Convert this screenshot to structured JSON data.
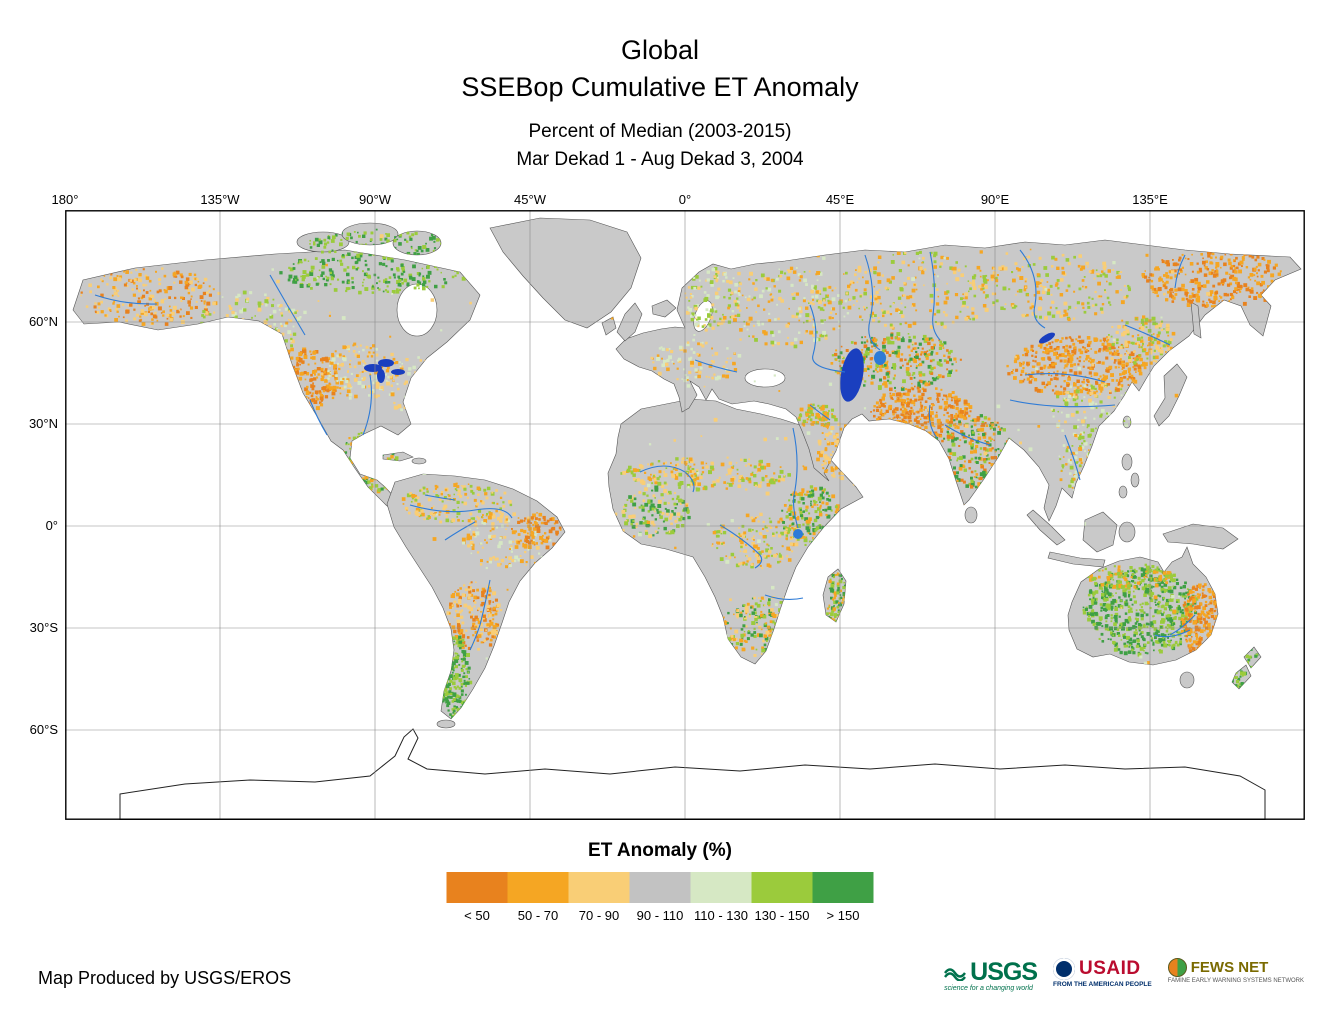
{
  "title": {
    "line1": "Global",
    "line2": "SSEBop Cumulative ET Anomaly"
  },
  "subtitle": {
    "line1": "Percent of Median (2003-2015)",
    "line2": "Mar Dekad 1 - Aug Dekad 3, 2004"
  },
  "map": {
    "lon_labels": [
      "180°",
      "135°W",
      "90°W",
      "45°W",
      "0°",
      "45°E",
      "90°E",
      "135°E"
    ],
    "lat_labels": [
      "60°N",
      "30°N",
      "0°",
      "30°S",
      "60°S"
    ],
    "ocean_color": "#FFFFFF",
    "land_color": "#C9C9C9",
    "water_color": "#2E7BD6",
    "deep_water_color": "#1A3FBF"
  },
  "legend": {
    "title": "ET Anomaly (%)",
    "items": [
      {
        "label": "< 50",
        "color": "#E8821E"
      },
      {
        "label": "50 - 70",
        "color": "#F5A623"
      },
      {
        "label": "70 - 90",
        "color": "#F9CE76"
      },
      {
        "label": "90 - 110",
        "color": "#C2C2C2"
      },
      {
        "label": "110 - 130",
        "color": "#D6E8C4"
      },
      {
        "label": "130 - 150",
        "color": "#9BCB3C"
      },
      {
        "label": "> 150",
        "color": "#3FA045"
      }
    ]
  },
  "footer": {
    "credit": "Map Produced by USGS/EROS"
  },
  "logos": {
    "usgs": {
      "name": "USGS",
      "tagline": "science for a changing world"
    },
    "usaid": {
      "name": "USAID",
      "tagline": "FROM THE AMERICAN PEOPLE"
    },
    "fewsnet": {
      "name": "FEWS NET",
      "tagline": "FAMINE EARLY WARNING SYSTEMS NETWORK"
    }
  }
}
